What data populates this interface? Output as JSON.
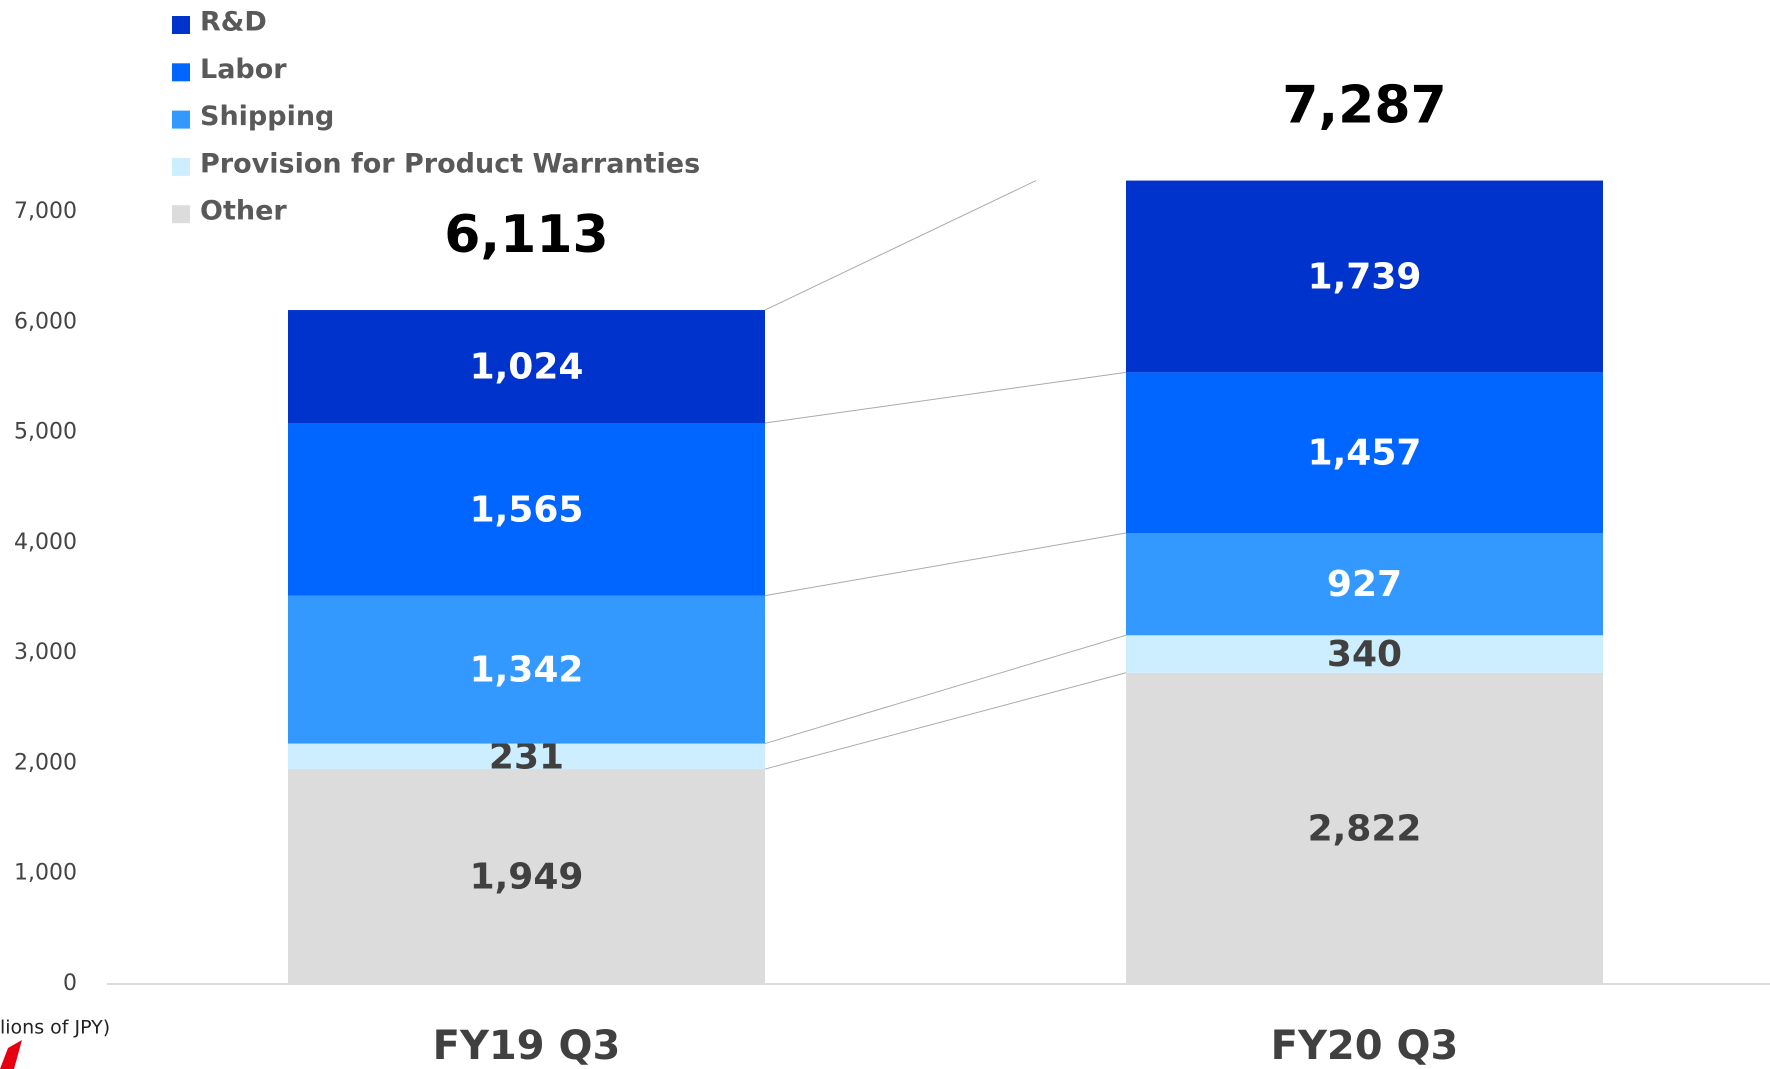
{
  "chart_data": {
    "type": "stacked_bar",
    "unit_label": "lions of JPY)",
    "categories": [
      "FY19 Q3",
      "FY20 Q3"
    ],
    "series": [
      {
        "name": "Other",
        "color": "#dcdcdc",
        "label_color": "#404040",
        "values": [
          1949,
          2822
        ],
        "value_labels": [
          "1,949",
          "2,822"
        ]
      },
      {
        "name": "Provision for Product Warranties",
        "color": "#cdeeff",
        "label_color": "#404040",
        "values": [
          231,
          340
        ]
      },
      {
        "name": "Shipping",
        "color": "#3399ff",
        "label_color": "#ffffff",
        "values": [
          1342,
          927
        ],
        "value_labels": [
          "1,342",
          "927"
        ]
      },
      {
        "name": "Labor",
        "color": "#0066ff",
        "label_color": "#ffffff",
        "values": [
          1565,
          1457
        ],
        "value_labels": [
          "1,565",
          "1,457"
        ]
      },
      {
        "name": "R&D",
        "color": "#0033cc",
        "label_color": "#ffffff",
        "values": [
          1024,
          1739
        ],
        "value_labels": [
          "1,024",
          "1,739"
        ]
      }
    ],
    "totals": [
      6113,
      7287
    ],
    "total_labels": [
      "6,113",
      "7,287"
    ],
    "ylim": [
      0,
      7000
    ],
    "yticks": [
      0,
      {
        "value": 1000,
        "label": "1,000"
      },
      {
        "value": 2000,
        "label": "2,000"
      },
      {
        "value": 3000,
        "label": "3,000"
      },
      {
        "value": 4000,
        "label": "4,000"
      },
      {
        "value": 5000,
        "label": "5,000"
      },
      {
        "value": 6000,
        "label": "6,000"
      },
      {
        "value": 7000,
        "label": "7,000"
      }
    ],
    "legend": "top-left"
  }
}
